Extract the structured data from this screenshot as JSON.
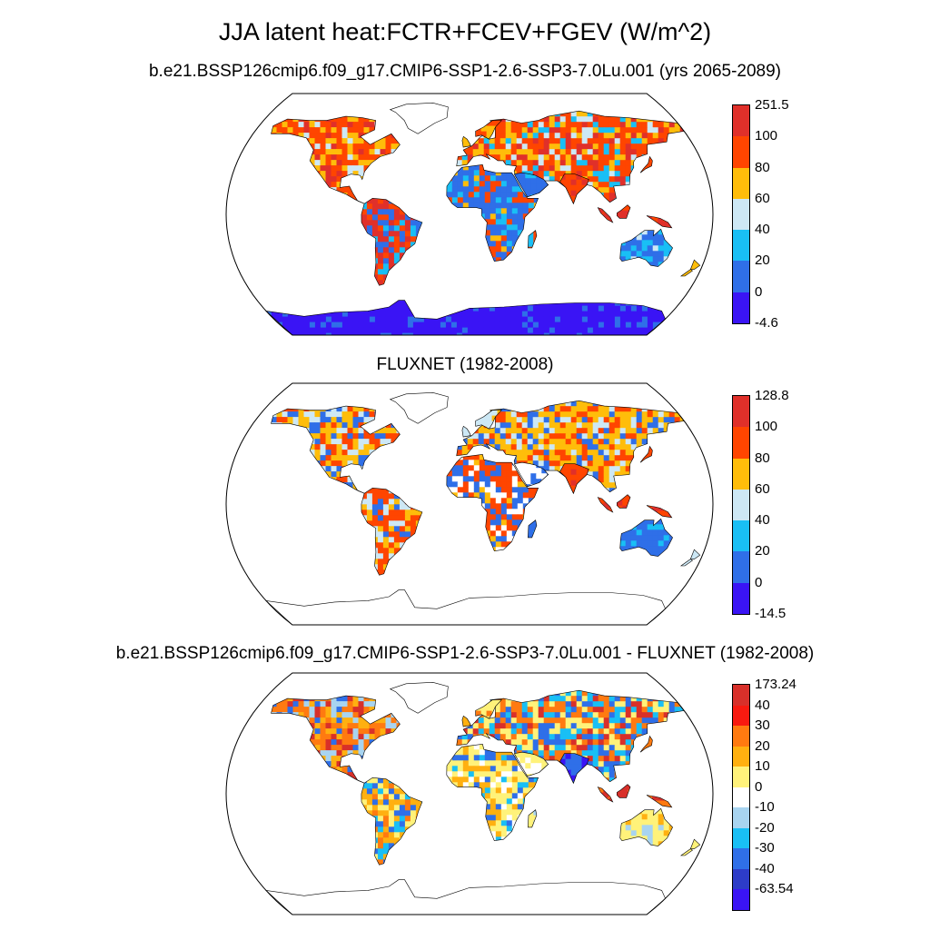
{
  "title": "JJA latent heat:FCTR+FCEV+FGEV (W/m^2)",
  "panels": [
    {
      "title": "b.e21.BSSP126cmip6.f09_g17.CMIP6-SSP1-2.6-SSP3-7.0Lu.001 (yrs 2065-2089)",
      "legend": {
        "labels": [
          "251.5",
          "100",
          "80",
          "60",
          "40",
          "20",
          "0",
          "-4.6"
        ],
        "colors": [
          "#e0302a",
          "#ff4500",
          "#ffbd0a",
          "#cde8f5",
          "#19bff5",
          "#2f6fe8",
          "#3a14f5"
        ]
      },
      "pattern": "model"
    },
    {
      "title": "FLUXNET (1982-2008)",
      "legend": {
        "labels": [
          "128.8",
          "100",
          "80",
          "60",
          "40",
          "20",
          "0",
          "-14.5"
        ],
        "colors": [
          "#e0302a",
          "#ff4500",
          "#ffbd0a",
          "#cde8f5",
          "#19bff5",
          "#2f6fe8",
          "#3a14f5"
        ]
      },
      "pattern": "obs"
    },
    {
      "title": "b.e21.BSSP126cmip6.f09_g17.CMIP6-SSP1-2.6-SSP3-7.0Lu.001 - FLUXNET (1982-2008)",
      "legend": {
        "labels": [
          "173.24",
          "40",
          "30",
          "20",
          "10",
          "0",
          "-10",
          "-20",
          "-30",
          "-40",
          "-63.54"
        ],
        "colors": [
          "#d8302a",
          "#f81a10",
          "#ff7a10",
          "#ffb010",
          "#fff27a",
          "#ffffff",
          "#a8d4f0",
          "#19bff5",
          "#2f6fe8",
          "#2d3cc8",
          "#3a14f5"
        ]
      },
      "pattern": "diff"
    }
  ]
}
